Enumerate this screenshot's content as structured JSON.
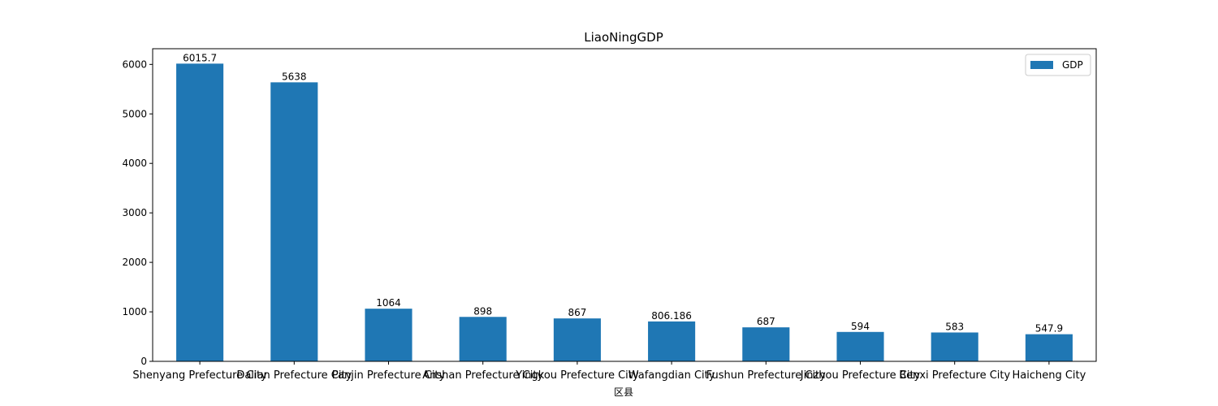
{
  "chart_data": {
    "type": "bar",
    "title": "LiaoNingGDP",
    "xlabel": "区县",
    "ylabel": "",
    "categories": [
      "Shenyang Prefecture City",
      "Dalian Prefecture City",
      "Panjin Prefecture City",
      "Anshan Prefecture City",
      "Yingkou Prefecture City",
      "Wafangdian City",
      "Fushun Prefecture City",
      "Jinzhou Prefecture City",
      "Benxi Prefecture City",
      "Haicheng City"
    ],
    "series": [
      {
        "name": "GDP",
        "color": "#1f77b4",
        "values": [
          6015.7,
          5638,
          1064,
          898,
          867,
          806.186,
          687,
          594,
          583,
          547.9
        ],
        "value_labels": [
          "6015.7",
          "5638",
          "1064",
          "898",
          "867",
          "806.186",
          "687",
          "594",
          "583",
          "547.9"
        ]
      }
    ],
    "ylim": [
      0,
      6317
    ],
    "yticks": [
      0,
      1000,
      2000,
      3000,
      4000,
      5000,
      6000
    ],
    "grid": false,
    "legend": "upper-right"
  }
}
